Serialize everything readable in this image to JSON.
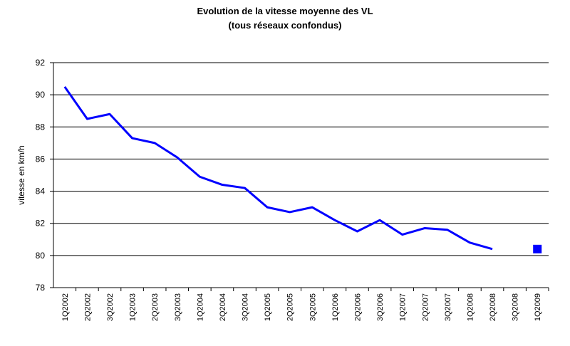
{
  "chart_data": {
    "type": "line",
    "title": "Evolution de la vitesse moyenne des VL",
    "subtitle": "(tous réseaux confondus)",
    "y_label": "vitesse en km/h",
    "categories": [
      "1Q2002",
      "2Q2002",
      "3Q2002",
      "1Q2003",
      "2Q2003",
      "3Q2003",
      "1Q2004",
      "2Q2004",
      "3Q2004",
      "1Q2005",
      "2Q2005",
      "3Q2005",
      "1Q2006",
      "2Q2006",
      "3Q2006",
      "1Q2007",
      "2Q2007",
      "3Q2007",
      "1Q2008",
      "2Q2008",
      "3Q2008",
      "1Q2009"
    ],
    "series": [
      {
        "color": "#0000ff",
        "values": [
          90.5,
          88.5,
          88.8,
          87.3,
          87.0,
          86.1,
          84.9,
          84.4,
          84.2,
          83.0,
          82.7,
          83.0,
          82.2,
          81.5,
          82.2,
          81.3,
          81.7,
          81.6,
          80.8,
          80.4,
          null,
          80.4
        ]
      }
    ],
    "ylim": [
      78,
      92
    ],
    "yticks": [
      78,
      80,
      82,
      84,
      86,
      88,
      90,
      92
    ],
    "grid": true
  }
}
